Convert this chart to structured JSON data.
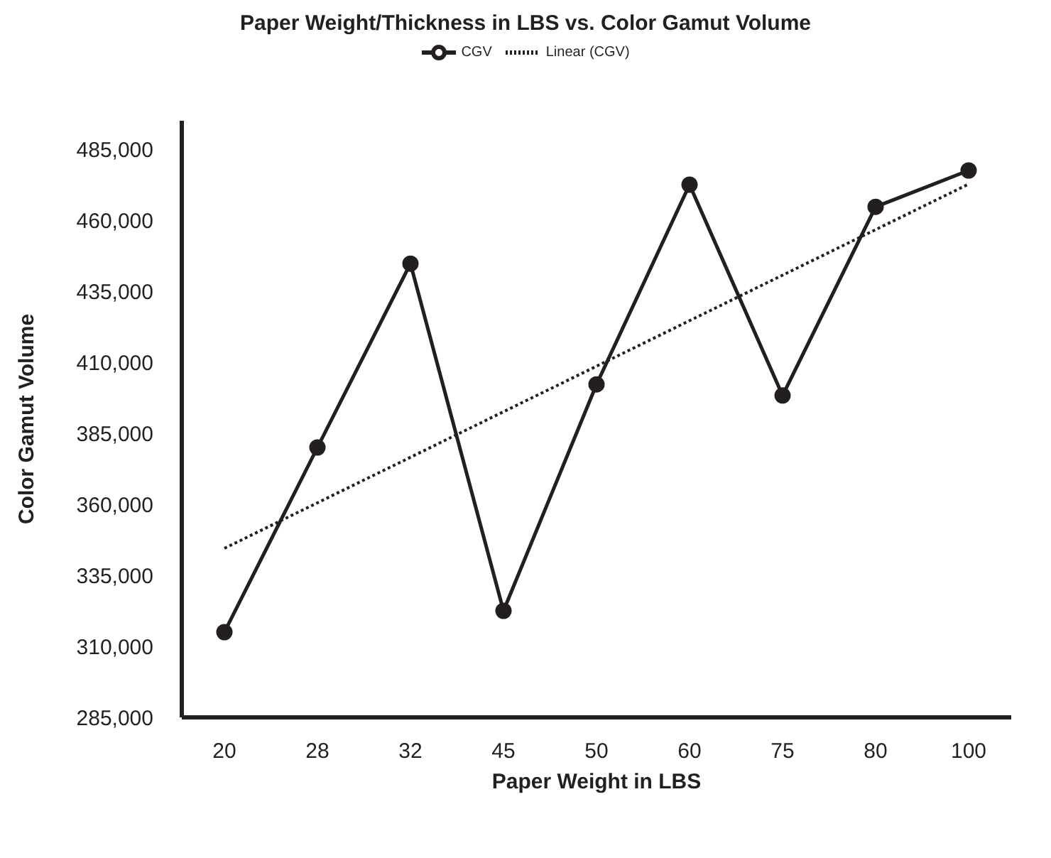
{
  "chart_data": {
    "type": "line",
    "title": "Paper Weight/Thickness in LBS vs. Color Gamut Volume",
    "xlabel": "Paper Weight in LBS",
    "ylabel": "Color Gamut Volume",
    "categories": [
      "20",
      "28",
      "32",
      "45",
      "50",
      "60",
      "75",
      "80",
      "100"
    ],
    "series": [
      {
        "name": "CGV",
        "color": "#231f20",
        "marker": "circle",
        "line_style": "solid",
        "values": [
          315000,
          380000,
          444700,
          322500,
          402200,
          472500,
          398300,
          464700,
          477500
        ]
      },
      {
        "name": "Linear (CGV)",
        "color": "#231f20",
        "marker": "none",
        "line_style": "dotted",
        "x": [
          "20",
          "100"
        ],
        "values": [
          344500,
          472700
        ]
      }
    ],
    "ylim": [
      285000,
      495000
    ],
    "yticks": [
      {
        "value": 285000,
        "label": "285,000"
      },
      {
        "value": 310000,
        "label": "310,000"
      },
      {
        "value": 335000,
        "label": "335,000"
      },
      {
        "value": 360000,
        "label": "360,000"
      },
      {
        "value": 385000,
        "label": "385,000"
      },
      {
        "value": 410000,
        "label": "410,000"
      },
      {
        "value": 435000,
        "label": "435,000"
      },
      {
        "value": 460000,
        "label": "460,000"
      },
      {
        "value": 485000,
        "label": "485,000"
      }
    ],
    "grid": false,
    "legend": "top"
  }
}
